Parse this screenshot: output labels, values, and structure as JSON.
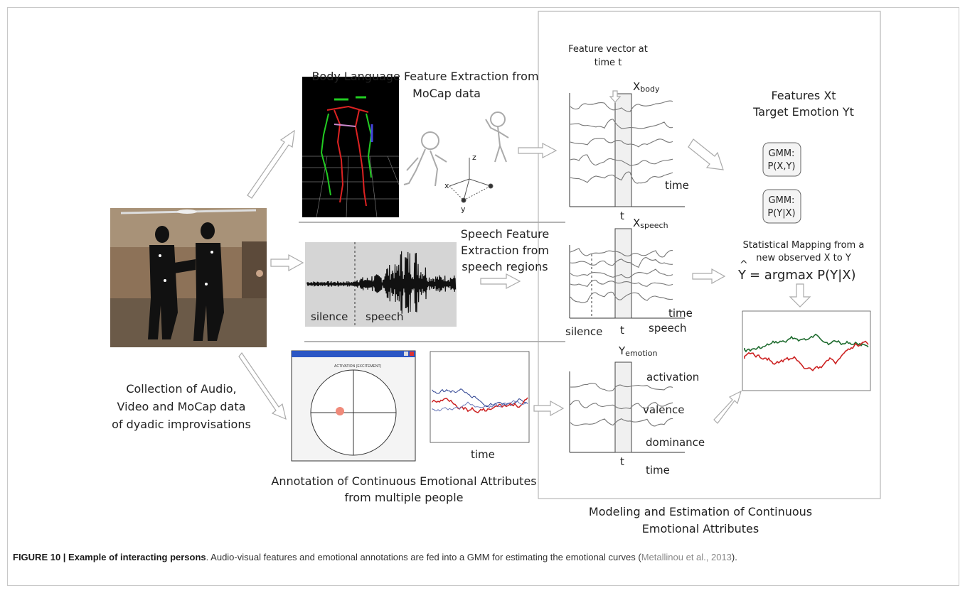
{
  "labels": {
    "body_title_1": "Body Language Feature Extraction from",
    "body_title_2": "MoCap data",
    "feature_vector_1": "Feature vector at",
    "feature_vector_2": "time t",
    "x_body_main": "X",
    "x_body_sub": "body",
    "time_axis": "time",
    "t_marker": "t",
    "features_line1": "Features Xt",
    "features_line2": "Target Emotion Yt",
    "gmm_joint_1": "GMM:",
    "gmm_joint_2": "P(X,Y)",
    "gmm_cond_1": "GMM:",
    "gmm_cond_2": "P(Y|X)",
    "stat_map_1": "Statistical Mapping from a",
    "stat_map_2": "new observed  X to Y",
    "argmax": "= argmax P(Y|X)",
    "y_hat": "Y",
    "speech_title_1": "Speech Feature",
    "speech_title_2": "Extraction from",
    "speech_title_3": "speech regions",
    "silence": "silence",
    "speech": "speech",
    "x_speech_main": "X",
    "x_speech_sub": "speech",
    "collection_1": "Collection of Audio,",
    "collection_2": "Video and MoCap data",
    "collection_3": "of dyadic improvisations",
    "y_emotion_main": "Y",
    "y_emotion_sub": "emotion",
    "activation": "activation",
    "valence": "valence",
    "dominance": "dominance",
    "annotation_1": "Annotation of Continuous Emotional Attributes",
    "annotation_2": "from multiple people",
    "modeling_1": "Modeling and Estimation of Continuous",
    "modeling_2": "Emotional Attributes",
    "axis_x": "x",
    "axis_y": "y",
    "axis_z": "z",
    "annot_window_header": "ACTIVATION (EXCITEMENT)"
  },
  "caption": {
    "lead": "FIGURE 10 | Example of interacting persons",
    "body": ". Audio-visual features and emotional annotations are fed into a GMM for estimating the emotional curves (",
    "cite": "Metallinou et al., 2013",
    "end": ")."
  },
  "colors": {
    "frame": "#c8c8c8",
    "arrow": "#bbbbbb",
    "red_series": "#cc2222",
    "green_series": "#1e6b2e",
    "blue_series": "#2a3f8f",
    "annot_dot": "#f08a7a"
  }
}
